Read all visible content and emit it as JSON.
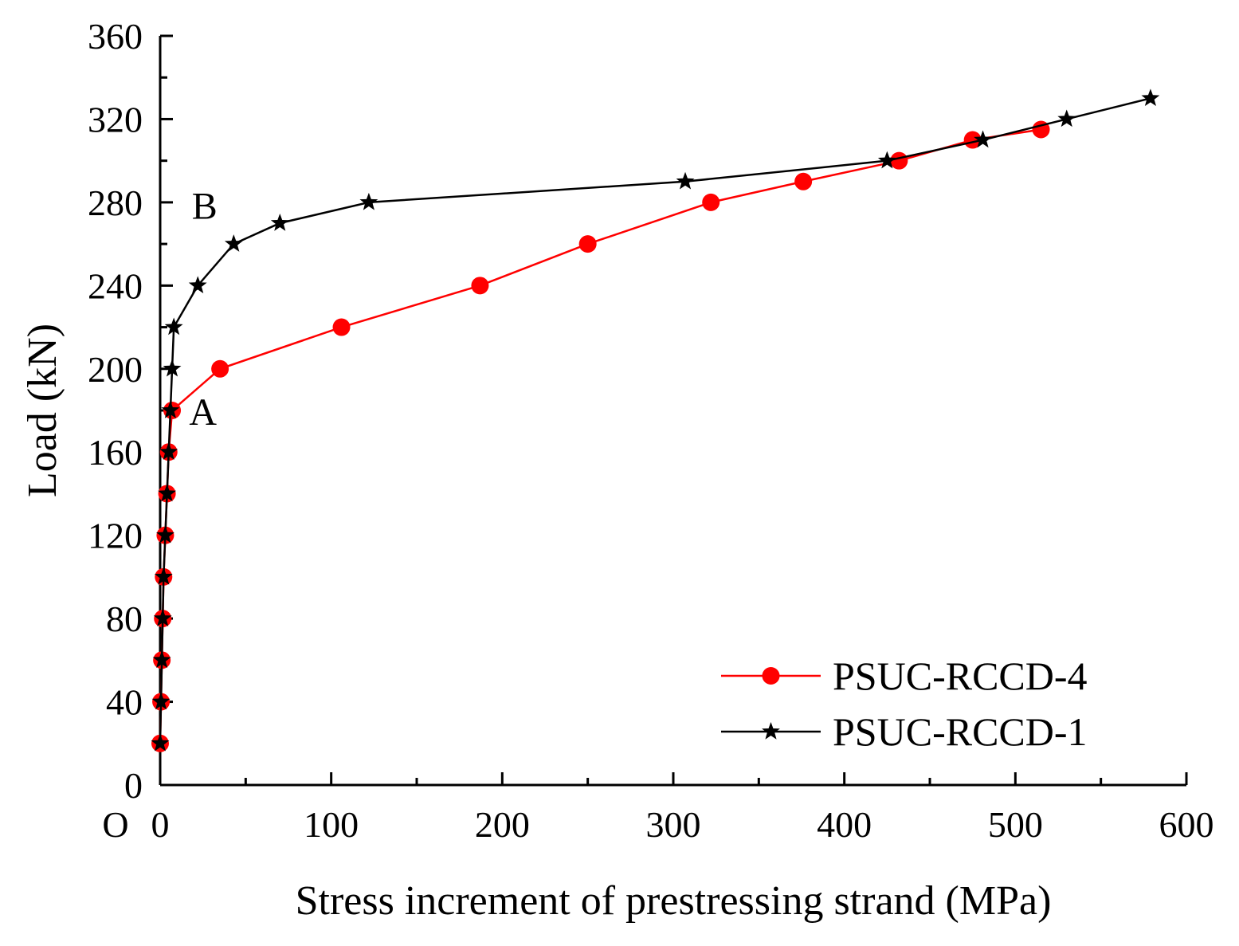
{
  "chart_data": {
    "type": "line",
    "title": "",
    "xlabel": "Stress increment of prestressing strand (MPa)",
    "ylabel": "Load (kN)",
    "xlim": [
      0,
      600
    ],
    "ylim": [
      0,
      360
    ],
    "xticks": [
      0,
      100,
      200,
      300,
      400,
      500,
      600
    ],
    "yticks": [
      0,
      40,
      80,
      120,
      160,
      200,
      240,
      280,
      320,
      360
    ],
    "grid": false,
    "origin_label": "O",
    "legend_position": "bottom-right",
    "series": [
      {
        "name": "PSUC-RCCD-4",
        "color": "#ff0000",
        "marker": "circle",
        "x": [
          0,
          0.5,
          1,
          1.5,
          2,
          3,
          4,
          5,
          7,
          35,
          106,
          187,
          250,
          322,
          376,
          432,
          475,
          515
        ],
        "y": [
          20,
          40,
          60,
          80,
          100,
          120,
          140,
          160,
          180,
          200,
          220,
          240,
          260,
          280,
          290,
          300,
          310,
          315
        ]
      },
      {
        "name": "PSUC-RCCD-1",
        "color": "#000000",
        "marker": "star",
        "x": [
          0,
          0.5,
          1,
          1.5,
          2,
          3,
          4,
          5,
          6,
          7,
          8,
          22,
          43,
          70,
          122,
          307,
          425,
          481,
          530,
          579
        ],
        "y": [
          20,
          40,
          60,
          80,
          100,
          120,
          140,
          160,
          180,
          200,
          220,
          240,
          260,
          270,
          280,
          290,
          300,
          310,
          320,
          330
        ]
      }
    ],
    "annotations": [
      {
        "text": "A",
        "x": 25,
        "y": 180
      },
      {
        "text": "B",
        "x": 26,
        "y": 279
      }
    ]
  }
}
